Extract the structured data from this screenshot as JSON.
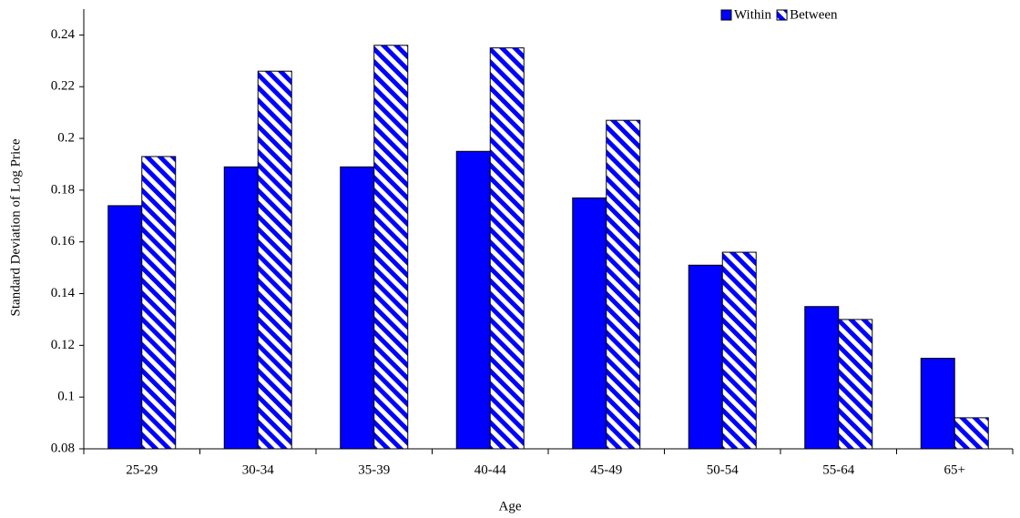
{
  "chart_data": {
    "type": "bar",
    "x_label": "Age",
    "y_label": "Standard Deviation of Log Price",
    "categories": [
      "25-29",
      "30-34",
      "35-39",
      "40-44",
      "45-49",
      "50-54",
      "55-64",
      "65+"
    ],
    "series": [
      {
        "name": "Within",
        "color": "#0000ff",
        "hatch": false,
        "values": [
          0.174,
          0.189,
          0.189,
          0.195,
          0.177,
          0.151,
          0.135,
          0.115
        ]
      },
      {
        "name": "Between",
        "color": "#0000ff",
        "hatch": true,
        "values": [
          0.193,
          0.226,
          0.236,
          0.235,
          0.207,
          0.156,
          0.13,
          0.092
        ]
      }
    ],
    "ylim": [
      0.08,
      0.25
    ],
    "yticks": [
      0.08,
      0.1,
      0.12,
      0.14,
      0.16,
      0.18,
      0.2,
      0.22,
      0.24
    ],
    "grid": false,
    "legend": "top-right"
  }
}
